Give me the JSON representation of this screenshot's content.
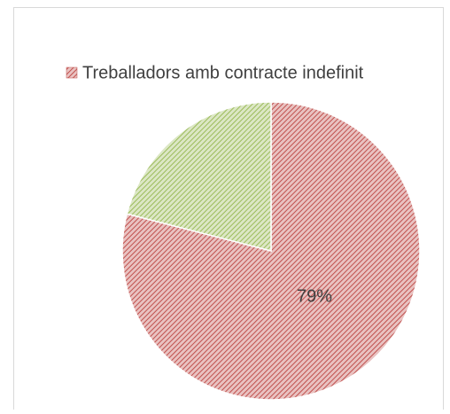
{
  "chart_data": {
    "type": "pie",
    "categories": [
      "Treballadors amb contracte indefinit",
      null
    ],
    "values": [
      79,
      21
    ],
    "value_labels": [
      "79%",
      null
    ],
    "colors": [
      "#c0504d",
      "#9bbb59"
    ],
    "legend": "top"
  }
}
